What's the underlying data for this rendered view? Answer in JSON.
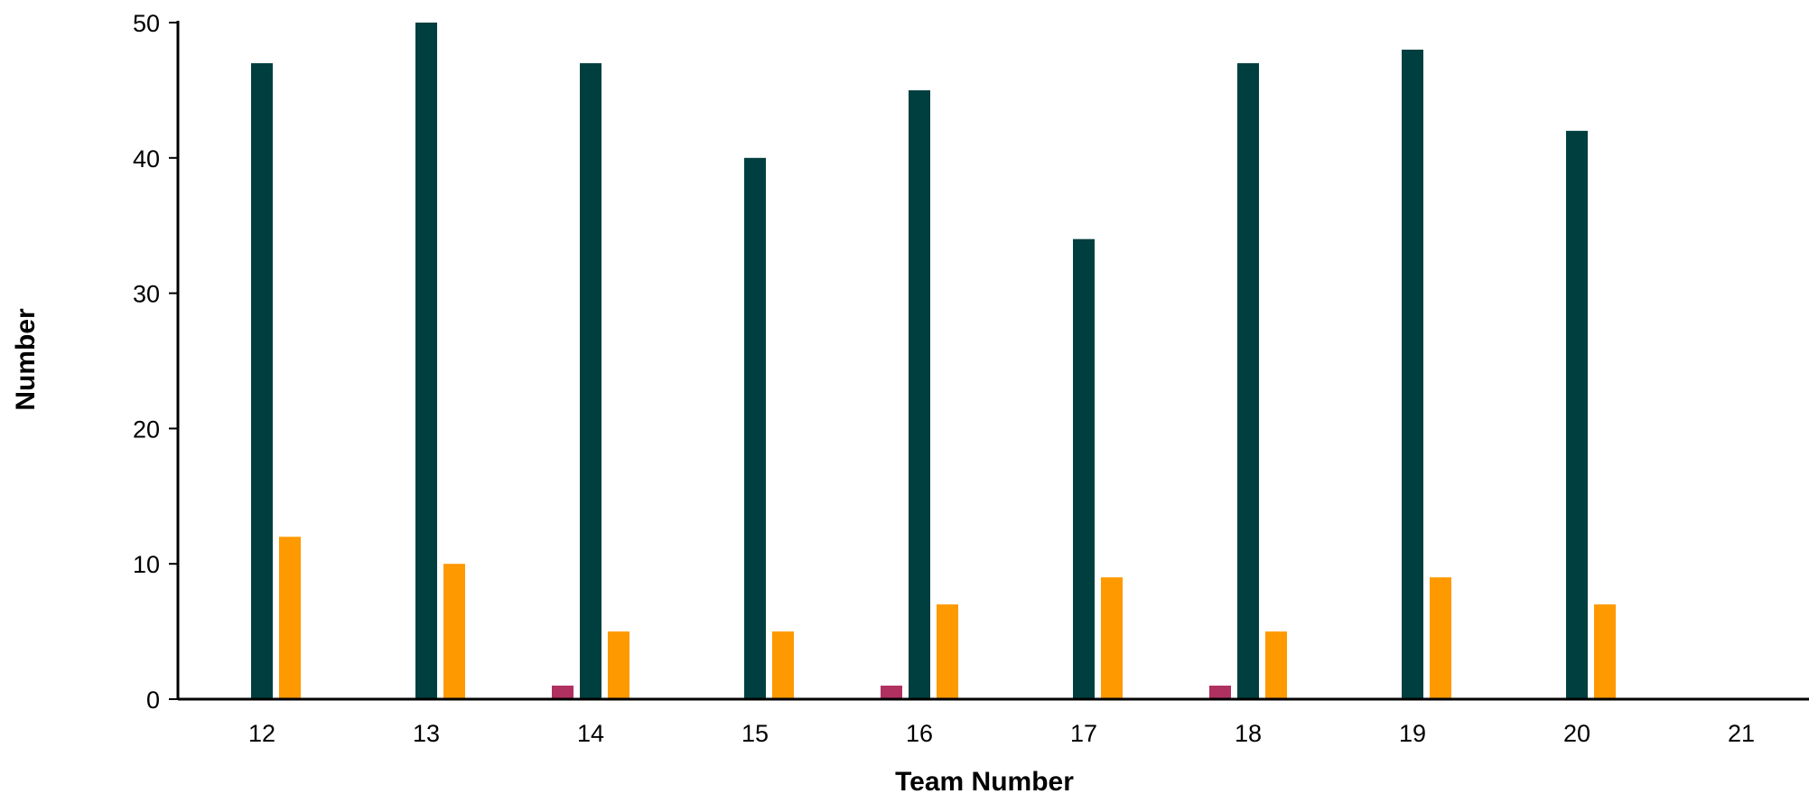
{
  "chart_data": {
    "type": "bar",
    "title": "",
    "xlabel": "Team Number",
    "ylabel": "Number",
    "ylim": [
      0,
      50
    ],
    "yticks": [
      0,
      10,
      20,
      30,
      40,
      50
    ],
    "categories": [
      "12",
      "13",
      "14",
      "15",
      "16",
      "17",
      "18",
      "19",
      "20",
      "21"
    ],
    "series": [
      {
        "color": "#B03060",
        "values": [
          0,
          0,
          1,
          0,
          1,
          0,
          1,
          0,
          0,
          0
        ]
      },
      {
        "color": "#003F3F",
        "values": [
          47,
          50,
          47,
          40,
          45,
          34,
          47,
          48,
          42,
          0
        ]
      },
      {
        "color": "#FF9900",
        "values": [
          12,
          10,
          5,
          5,
          7,
          9,
          5,
          9,
          7,
          0
        ]
      }
    ],
    "grid": false,
    "legend": "none"
  }
}
